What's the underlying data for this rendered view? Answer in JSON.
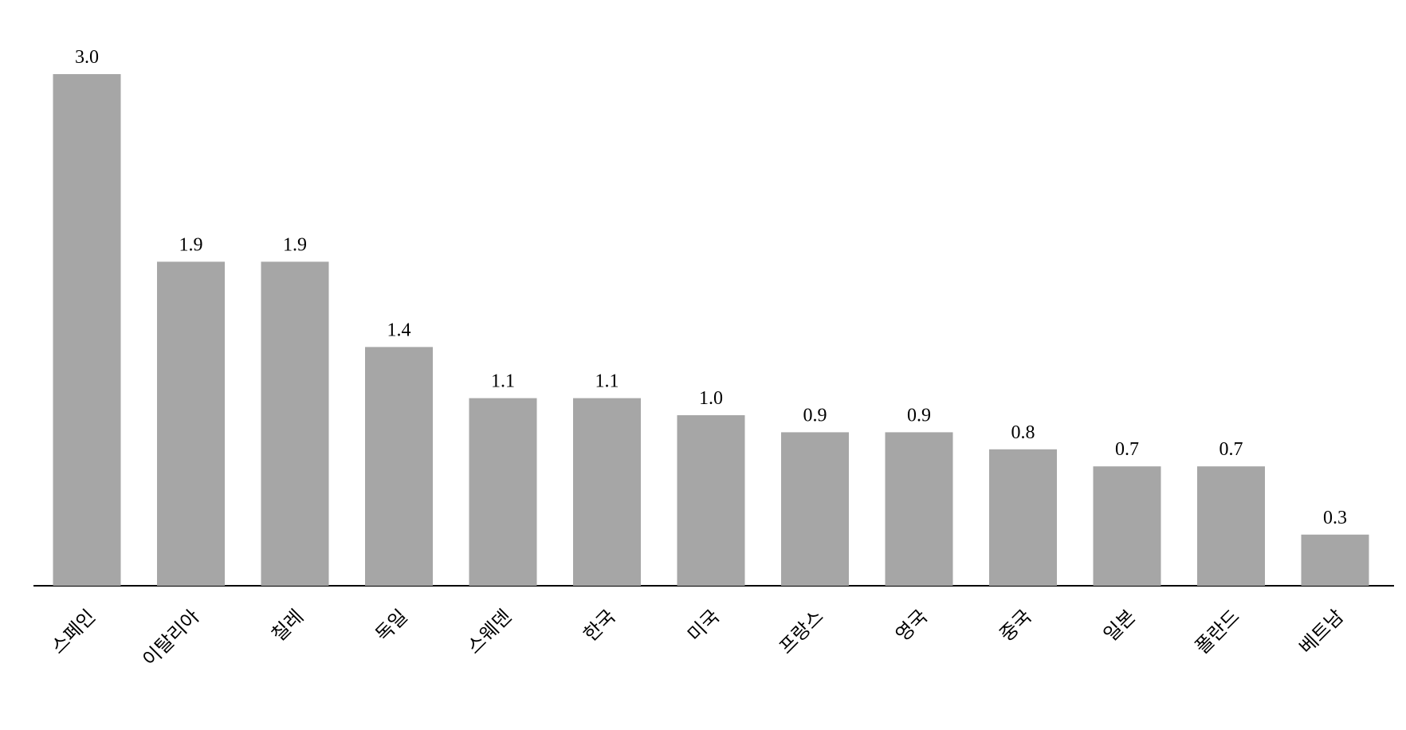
{
  "chart_data": {
    "type": "bar",
    "categories": [
      "스페인",
      "이탈리아",
      "칠레",
      "독일",
      "스웨덴",
      "한국",
      "미국",
      "프랑스",
      "영국",
      "중국",
      "일본",
      "폴란드",
      "베트남"
    ],
    "values": [
      3.0,
      1.9,
      1.9,
      1.4,
      1.1,
      1.1,
      1.0,
      0.9,
      0.9,
      0.8,
      0.7,
      0.7,
      0.3
    ],
    "value_labels": [
      "3.0",
      "1.9",
      "1.9",
      "1.4",
      "1.1",
      "1.1",
      "1.0",
      "0.9",
      "0.9",
      "0.8",
      "0.7",
      "0.7",
      "0.3"
    ],
    "color": "#a6a6a6"
  }
}
